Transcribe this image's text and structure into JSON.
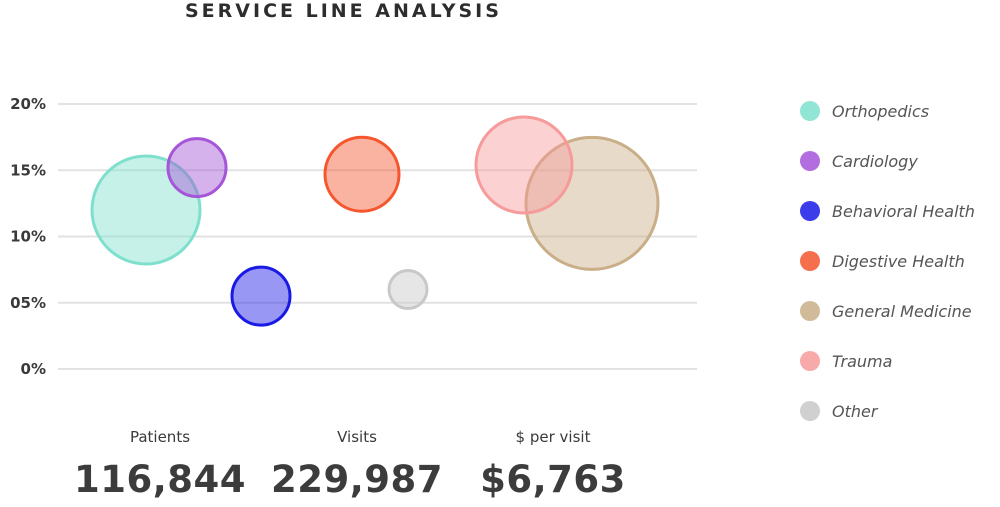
{
  "title": "SERVICE LINE ANALYSIS",
  "chart_data": {
    "type": "scatter",
    "title": "SERVICE LINE ANALYSIS",
    "ylim": [
      0,
      20
    ],
    "yticks": [
      "0%",
      "05%",
      "10%",
      "15%",
      "20%"
    ],
    "grid": true,
    "legend_position": "right",
    "series": [
      {
        "name": "Orthopedics",
        "color": "#7ee0cc",
        "y": 12,
        "size": 54
      },
      {
        "name": "Cardiology",
        "color": "#a555d8",
        "y": 15.2,
        "size": 29
      },
      {
        "name": "Behavioral Health",
        "color": "#1a1ae6",
        "y": 5.5,
        "size": 29
      },
      {
        "name": "Digestive Health",
        "color": "#f5562e",
        "y": 14.7,
        "size": 37
      },
      {
        "name": "General Medicine",
        "color": "#c9ae88",
        "y": 12.5,
        "size": 66
      },
      {
        "name": "Trauma",
        "color": "#f79a9a",
        "y": 15.4,
        "size": 48
      },
      {
        "name": "Other",
        "color": "#c8c8c8",
        "y": 6,
        "size": 19
      }
    ]
  },
  "stats": [
    {
      "label": "Patients",
      "value": "116,844"
    },
    {
      "label": "Visits",
      "value": "229,987"
    },
    {
      "label": "$ per visit",
      "value": "$6,763"
    }
  ]
}
